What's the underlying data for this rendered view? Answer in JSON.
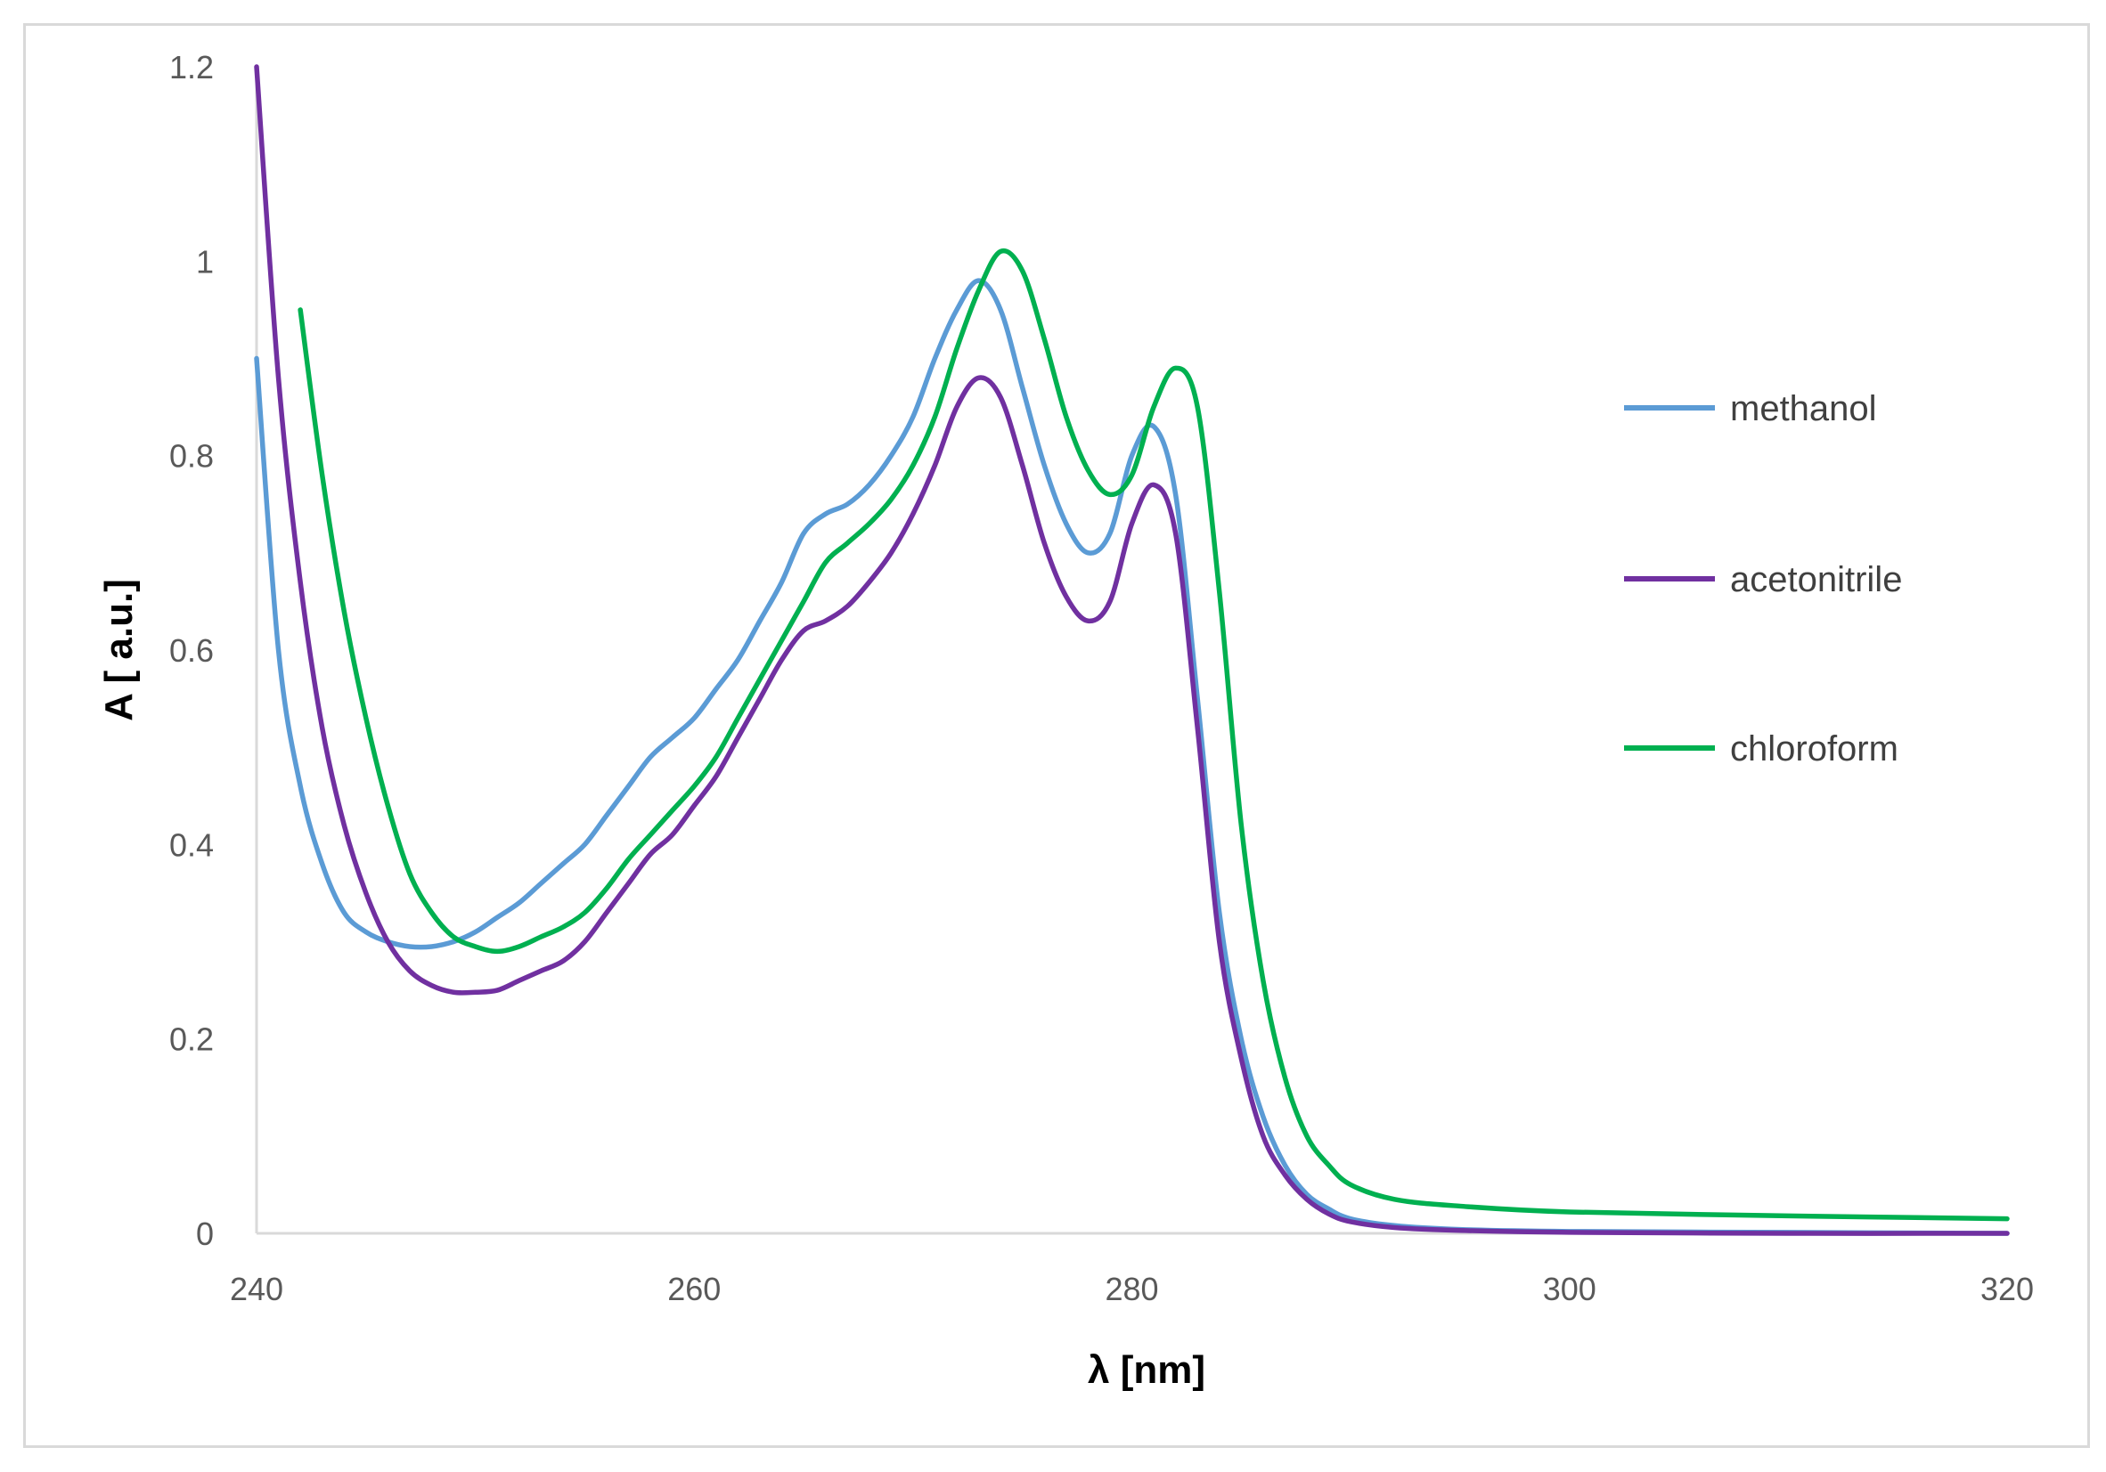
{
  "chart_data": {
    "type": "line",
    "title": "",
    "xlabel": "λ [nm]",
    "ylabel": "A [ a.u.]",
    "xlim": [
      240,
      320
    ],
    "ylim": [
      0,
      1.2
    ],
    "x_ticks": [
      240,
      260,
      280,
      300,
      320
    ],
    "y_ticks": [
      0,
      0.2,
      0.4,
      0.6,
      0.8,
      1,
      1.2
    ],
    "y_tick_labels": [
      "0",
      "0.2",
      "0.4",
      "0.6",
      "0.8",
      "1",
      "1.2"
    ],
    "grid": false,
    "legend_position": "right",
    "series": [
      {
        "name": "methanol",
        "color": "#5b9bd5",
        "points": [
          [
            240,
            0.9
          ],
          [
            241,
            0.6
          ],
          [
            242,
            0.46
          ],
          [
            243,
            0.38
          ],
          [
            244,
            0.33
          ],
          [
            245,
            0.31
          ],
          [
            246,
            0.3
          ],
          [
            247,
            0.295
          ],
          [
            248,
            0.295
          ],
          [
            249,
            0.3
          ],
          [
            250,
            0.31
          ],
          [
            251,
            0.325
          ],
          [
            252,
            0.34
          ],
          [
            253,
            0.36
          ],
          [
            254,
            0.38
          ],
          [
            255,
            0.4
          ],
          [
            256,
            0.43
          ],
          [
            257,
            0.46
          ],
          [
            258,
            0.49
          ],
          [
            259,
            0.51
          ],
          [
            260,
            0.53
          ],
          [
            261,
            0.56
          ],
          [
            262,
            0.59
          ],
          [
            263,
            0.63
          ],
          [
            264,
            0.67
          ],
          [
            265,
            0.72
          ],
          [
            266,
            0.74
          ],
          [
            267,
            0.75
          ],
          [
            268,
            0.77
          ],
          [
            269,
            0.8
          ],
          [
            270,
            0.84
          ],
          [
            271,
            0.9
          ],
          [
            272,
            0.95
          ],
          [
            273,
            0.98
          ],
          [
            274,
            0.95
          ],
          [
            275,
            0.87
          ],
          [
            276,
            0.79
          ],
          [
            277,
            0.73
          ],
          [
            278,
            0.7
          ],
          [
            279,
            0.72
          ],
          [
            280,
            0.8
          ],
          [
            281,
            0.83
          ],
          [
            282,
            0.76
          ],
          [
            283,
            0.55
          ],
          [
            284,
            0.33
          ],
          [
            285,
            0.2
          ],
          [
            286,
            0.12
          ],
          [
            287,
            0.07
          ],
          [
            288,
            0.04
          ],
          [
            289,
            0.025
          ],
          [
            290,
            0.015
          ],
          [
            292,
            0.008
          ],
          [
            295,
            0.004
          ],
          [
            300,
            0.002
          ],
          [
            310,
            0.001
          ],
          [
            320,
            0.0
          ]
        ]
      },
      {
        "name": "acetonitrile",
        "color": "#7030a0",
        "points": [
          [
            240,
            1.2
          ],
          [
            241,
            0.88
          ],
          [
            242,
            0.67
          ],
          [
            243,
            0.52
          ],
          [
            244,
            0.42
          ],
          [
            245,
            0.35
          ],
          [
            246,
            0.3
          ],
          [
            247,
            0.27
          ],
          [
            248,
            0.255
          ],
          [
            249,
            0.248
          ],
          [
            250,
            0.248
          ],
          [
            251,
            0.25
          ],
          [
            252,
            0.26
          ],
          [
            253,
            0.27
          ],
          [
            254,
            0.28
          ],
          [
            255,
            0.3
          ],
          [
            256,
            0.33
          ],
          [
            257,
            0.36
          ],
          [
            258,
            0.39
          ],
          [
            259,
            0.41
          ],
          [
            260,
            0.44
          ],
          [
            261,
            0.47
          ],
          [
            262,
            0.51
          ],
          [
            263,
            0.55
          ],
          [
            264,
            0.59
          ],
          [
            265,
            0.62
          ],
          [
            266,
            0.63
          ],
          [
            267,
            0.645
          ],
          [
            268,
            0.67
          ],
          [
            269,
            0.7
          ],
          [
            270,
            0.74
          ],
          [
            271,
            0.79
          ],
          [
            272,
            0.85
          ],
          [
            273,
            0.88
          ],
          [
            274,
            0.86
          ],
          [
            275,
            0.79
          ],
          [
            276,
            0.71
          ],
          [
            277,
            0.655
          ],
          [
            278,
            0.63
          ],
          [
            279,
            0.65
          ],
          [
            280,
            0.73
          ],
          [
            281,
            0.77
          ],
          [
            282,
            0.72
          ],
          [
            283,
            0.52
          ],
          [
            284,
            0.3
          ],
          [
            285,
            0.18
          ],
          [
            286,
            0.1
          ],
          [
            287,
            0.06
          ],
          [
            288,
            0.035
          ],
          [
            289,
            0.02
          ],
          [
            290,
            0.012
          ],
          [
            292,
            0.006
          ],
          [
            295,
            0.003
          ],
          [
            300,
            0.001
          ],
          [
            310,
            0.0
          ],
          [
            320,
            0.0
          ]
        ]
      },
      {
        "name": "chloroform",
        "color": "#00b050",
        "points": [
          [
            242,
            0.95
          ],
          [
            243,
            0.78
          ],
          [
            244,
            0.64
          ],
          [
            245,
            0.53
          ],
          [
            246,
            0.44
          ],
          [
            247,
            0.37
          ],
          [
            248,
            0.33
          ],
          [
            249,
            0.305
          ],
          [
            250,
            0.295
          ],
          [
            251,
            0.29
          ],
          [
            252,
            0.295
          ],
          [
            253,
            0.305
          ],
          [
            254,
            0.315
          ],
          [
            255,
            0.33
          ],
          [
            256,
            0.355
          ],
          [
            257,
            0.385
          ],
          [
            258,
            0.41
          ],
          [
            259,
            0.435
          ],
          [
            260,
            0.46
          ],
          [
            261,
            0.49
          ],
          [
            262,
            0.53
          ],
          [
            263,
            0.57
          ],
          [
            264,
            0.61
          ],
          [
            265,
            0.65
          ],
          [
            266,
            0.69
          ],
          [
            267,
            0.71
          ],
          [
            268,
            0.73
          ],
          [
            269,
            0.755
          ],
          [
            270,
            0.79
          ],
          [
            271,
            0.84
          ],
          [
            272,
            0.91
          ],
          [
            273,
            0.97
          ],
          [
            274,
            1.01
          ],
          [
            275,
            0.99
          ],
          [
            276,
            0.92
          ],
          [
            277,
            0.84
          ],
          [
            278,
            0.785
          ],
          [
            279,
            0.76
          ],
          [
            280,
            0.78
          ],
          [
            281,
            0.85
          ],
          [
            282,
            0.89
          ],
          [
            283,
            0.85
          ],
          [
            284,
            0.66
          ],
          [
            285,
            0.42
          ],
          [
            286,
            0.26
          ],
          [
            287,
            0.16
          ],
          [
            288,
            0.1
          ],
          [
            289,
            0.07
          ],
          [
            290,
            0.05
          ],
          [
            292,
            0.035
          ],
          [
            295,
            0.028
          ],
          [
            300,
            0.022
          ],
          [
            310,
            0.018
          ],
          [
            320,
            0.015
          ]
        ]
      }
    ]
  }
}
